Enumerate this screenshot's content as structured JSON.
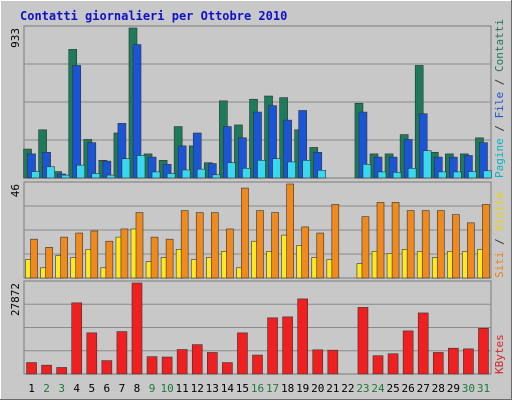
{
  "chart_data": {
    "type": "bar",
    "title": "Contatti giornalieri per Ottobre 2010",
    "categories": [
      "1",
      "2",
      "3",
      "4",
      "5",
      "6",
      "7",
      "8",
      "9",
      "10",
      "11",
      "12",
      "13",
      "14",
      "15",
      "16",
      "17",
      "18",
      "19",
      "20",
      "21",
      "22",
      "23",
      "24",
      "25",
      "26",
      "27",
      "28",
      "29",
      "30",
      "31"
    ],
    "weekend_days": [
      "2",
      "3",
      "9",
      "10",
      "16",
      "17",
      "23",
      "24",
      "30",
      "31"
    ],
    "panels": [
      {
        "id": "top",
        "max_label": "933",
        "ylim": [
          0,
          933
        ],
        "axis_label_parts": [
          {
            "text": "Pagine",
            "color": "#00b8c8"
          },
          {
            "text": " / ",
            "color": "#333333"
          },
          {
            "text": "File",
            "color": "#1a55d8"
          },
          {
            "text": " / ",
            "color": "#333333"
          },
          {
            "text": "Contatti",
            "color": "#1d7a5a"
          }
        ],
        "series": [
          {
            "name": "Contatti",
            "color": "#1d7a5a",
            "values": [
              180,
              300,
              40,
              800,
              240,
              110,
              280,
              933,
              150,
              110,
              320,
              200,
              95,
              480,
              330,
              490,
              510,
              500,
              300,
              190,
              0,
              0,
              465,
              150,
              150,
              270,
              700,
              160,
              150,
              150,
              250
            ]
          },
          {
            "name": "File",
            "color": "#1a55d8",
            "values": [
              150,
              160,
              25,
              700,
              220,
              105,
              340,
              830,
              130,
              85,
              200,
              280,
              90,
              320,
              250,
              410,
              450,
              360,
              420,
              160,
              0,
              0,
              410,
              130,
              130,
              240,
              400,
              130,
              130,
              140,
              220
            ]
          },
          {
            "name": "Pagine",
            "color": "#38d8f0",
            "values": [
              40,
              70,
              18,
              80,
              28,
              18,
              120,
              140,
              38,
              28,
              50,
              55,
              20,
              95,
              60,
              110,
              120,
              100,
              110,
              48,
              0,
              0,
              85,
              38,
              35,
              60,
              170,
              38,
              38,
              40,
              45
            ]
          }
        ]
      },
      {
        "id": "middle",
        "max_label": "46",
        "ylim": [
          0,
          46
        ],
        "axis_label_parts": [
          {
            "text": "Siti",
            "color": "#f08010"
          },
          {
            "text": " / ",
            "color": "#333333"
          },
          {
            "text": "Visite",
            "color": "#f0d400"
          }
        ],
        "series": [
          {
            "name": "Visite",
            "color": "#ffe820",
            "values": [
              9,
              5,
              11,
              10,
              14,
              5,
              20,
              24,
              8,
              10,
              14,
              9,
              10,
              13,
              5,
              18,
              13,
              21,
              16,
              10,
              9,
              0,
              7,
              13,
              12,
              14,
              13,
              10,
              13,
              13,
              14
            ]
          },
          {
            "name": "Siti",
            "color": "#f08a1c",
            "values": [
              19,
              15,
              20,
              22,
              23,
              18,
              24,
              32,
              20,
              19,
              33,
              32,
              32,
              24,
              44,
              33,
              32,
              46,
              25,
              22,
              36,
              0,
              30,
              37,
              37,
              33,
              33,
              33,
              31,
              27,
              36
            ]
          }
        ]
      },
      {
        "id": "bottom",
        "max_label": "27872",
        "ylim": [
          0,
          27872
        ],
        "axis_label_parts": [
          {
            "text": "KBytes",
            "color": "#e02020"
          }
        ],
        "series": [
          {
            "name": "KBytes",
            "color": "#f02020",
            "values": [
              3500,
              2700,
              2000,
              21800,
              12600,
              4100,
              13000,
              27872,
              5300,
              5200,
              7500,
              9000,
              6600,
              3500,
              12600,
              5800,
              17200,
              17500,
              23000,
              7400,
              7300,
              0,
              20400,
              5600,
              6200,
              13200,
              18700,
              6600,
              7900,
              7700,
              14000
            ]
          }
        ]
      }
    ]
  }
}
